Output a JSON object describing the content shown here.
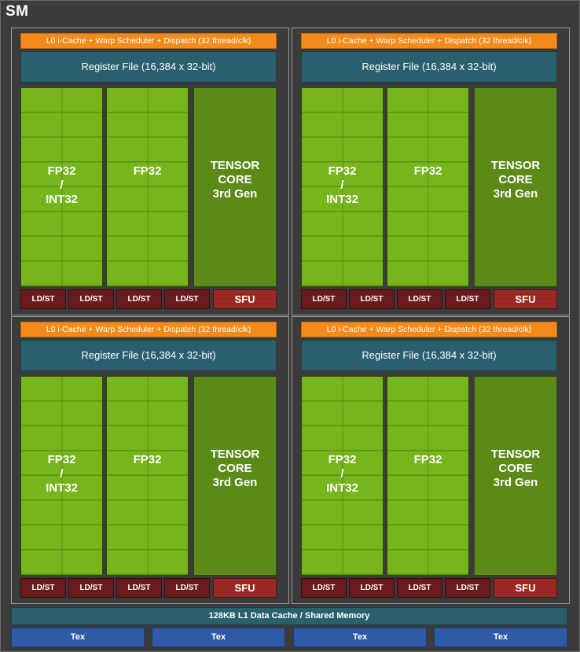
{
  "sm": {
    "title": "SM"
  },
  "partition": {
    "l0_label": "L0 i-Cache + Warp Scheduler + Dispatch (32 thread/clk)",
    "register_file_label": "Register File (16,384 x 32-bit)",
    "fp32_int32": [
      "FP32",
      "/",
      "INT32"
    ],
    "fp32": "FP32",
    "tensor_core": [
      "TENSOR",
      "CORE",
      "3rd Gen"
    ],
    "ldst_label": "LD/ST",
    "sfu_label": "SFU"
  },
  "l1_cache_label": "128KB L1 Data Cache / Shared Memory",
  "tex_units": [
    "Tex",
    "Tex",
    "Tex",
    "Tex"
  ],
  "colors": {
    "l0": "#f28b1c",
    "register_file": "#2a5f6e",
    "core": "#76b51c",
    "tensor": "#5b8a18",
    "ldst": "#6a1b1b",
    "sfu": "#9c2a24",
    "tex": "#2f5aa8"
  }
}
